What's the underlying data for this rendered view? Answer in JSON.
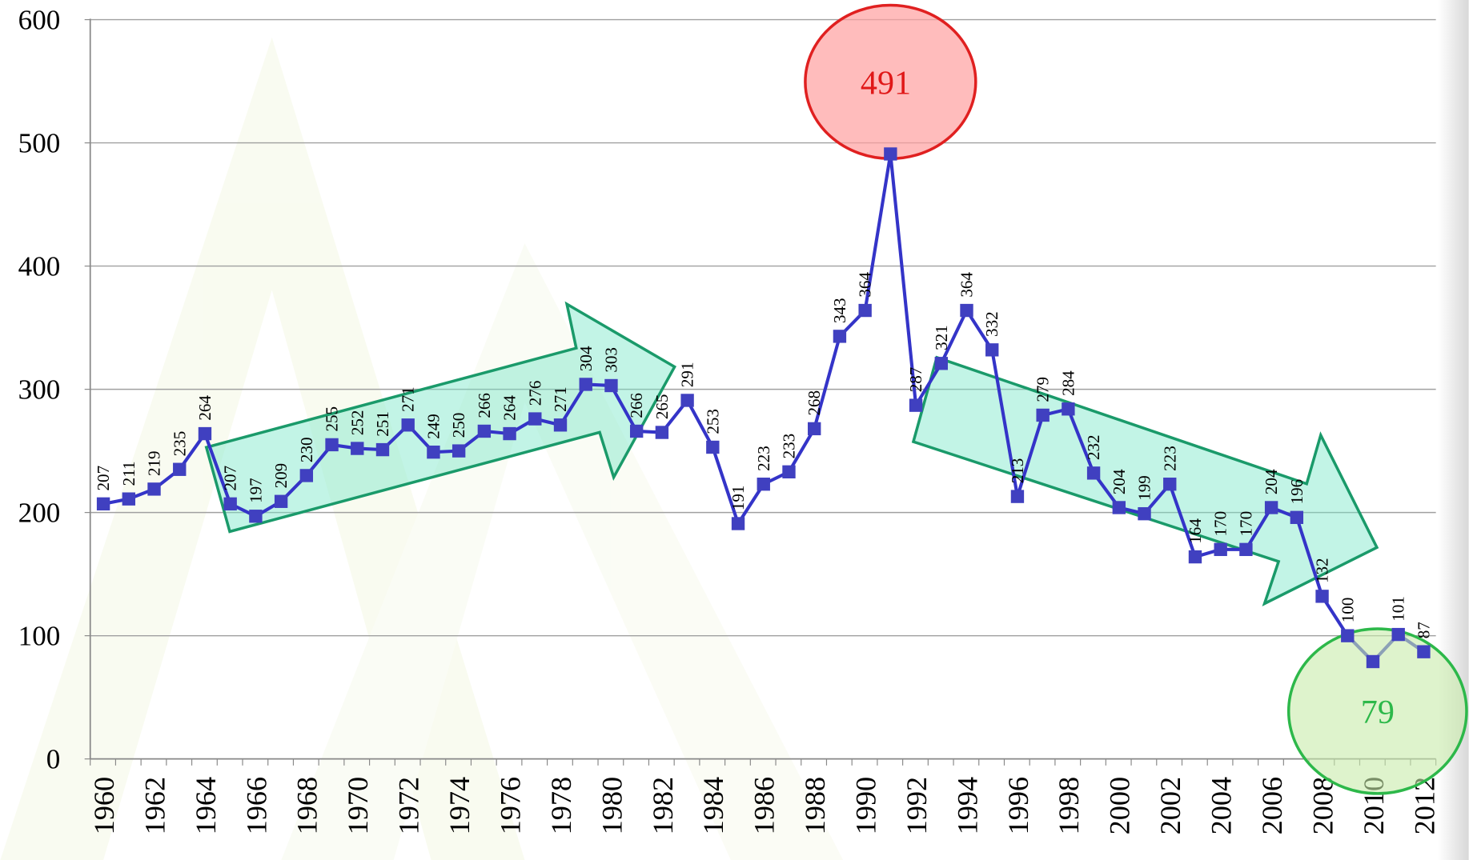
{
  "chart_data": {
    "type": "line",
    "categories": [
      "1960",
      null,
      "1962",
      null,
      "1964",
      null,
      "1966",
      null,
      "1968",
      null,
      "1970",
      null,
      "1972",
      null,
      "1974",
      null,
      "1976",
      null,
      "1978",
      null,
      "1980",
      null,
      "1982",
      null,
      "1984",
      null,
      "1986",
      null,
      "1988",
      null,
      "1990",
      null,
      "1992",
      null,
      "1994",
      null,
      "1996",
      null,
      "1998",
      null,
      "2000",
      null,
      "2002",
      null,
      "2004",
      null,
      "2006",
      null,
      "2008",
      null,
      "2010",
      null,
      "2012"
    ],
    "values": [
      207,
      211,
      219,
      235,
      264,
      207,
      197,
      209,
      230,
      255,
      252,
      251,
      271,
      249,
      250,
      266,
      264,
      276,
      271,
      304,
      303,
      266,
      265,
      291,
      253,
      191,
      223,
      233,
      268,
      343,
      364,
      491,
      287,
      321,
      364,
      332,
      213,
      279,
      284,
      232,
      204,
      199,
      223,
      164,
      170,
      170,
      204,
      196,
      132,
      100,
      79,
      101,
      87
    ],
    "color": "#3434c8",
    "marker": "square",
    "ylim": [
      0,
      600
    ],
    "yticks": [
      0,
      100,
      200,
      300,
      400,
      500,
      600
    ],
    "grid": true
  }
}
